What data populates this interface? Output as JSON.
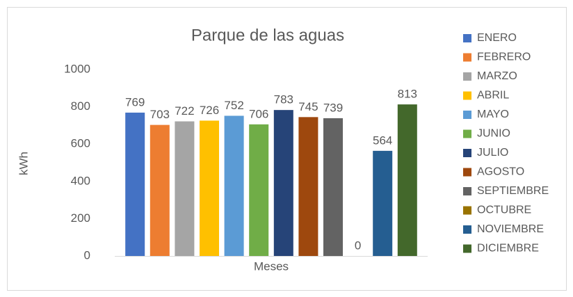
{
  "chart_data": {
    "type": "bar",
    "title": "Parque de las aguas",
    "x_label": "Meses",
    "y_label": "kWh",
    "categories": [
      "Meses"
    ],
    "series": [
      {
        "name": "ENERO",
        "color": "#4472c4",
        "values": [
          769
        ]
      },
      {
        "name": "FEBRERO",
        "color": "#ed7d31",
        "values": [
          703
        ]
      },
      {
        "name": "MARZO",
        "color": "#a5a5a5",
        "values": [
          722
        ]
      },
      {
        "name": "ABRIL",
        "color": "#ffc000",
        "values": [
          726
        ]
      },
      {
        "name": "MAYO",
        "color": "#5b9bd5",
        "values": [
          752
        ]
      },
      {
        "name": "JUNIO",
        "color": "#70ad47",
        "values": [
          706
        ]
      },
      {
        "name": "JULIO",
        "color": "#264478",
        "values": [
          783
        ]
      },
      {
        "name": "AGOSTO",
        "color": "#9e480e",
        "values": [
          745
        ]
      },
      {
        "name": "SEPTIEMBRE",
        "color": "#636363",
        "values": [
          739
        ]
      },
      {
        "name": "OCTUBRE",
        "color": "#997300",
        "values": [
          0
        ]
      },
      {
        "name": "NOVIEMBRE",
        "color": "#255e91",
        "values": [
          564
        ]
      },
      {
        "name": "DICIEMBRE",
        "color": "#43682b",
        "values": [
          813
        ]
      }
    ],
    "ylim": [
      0,
      1000
    ],
    "yticks": [
      0,
      200,
      400,
      600,
      800,
      1000
    ],
    "grid": false,
    "legend": "right"
  }
}
